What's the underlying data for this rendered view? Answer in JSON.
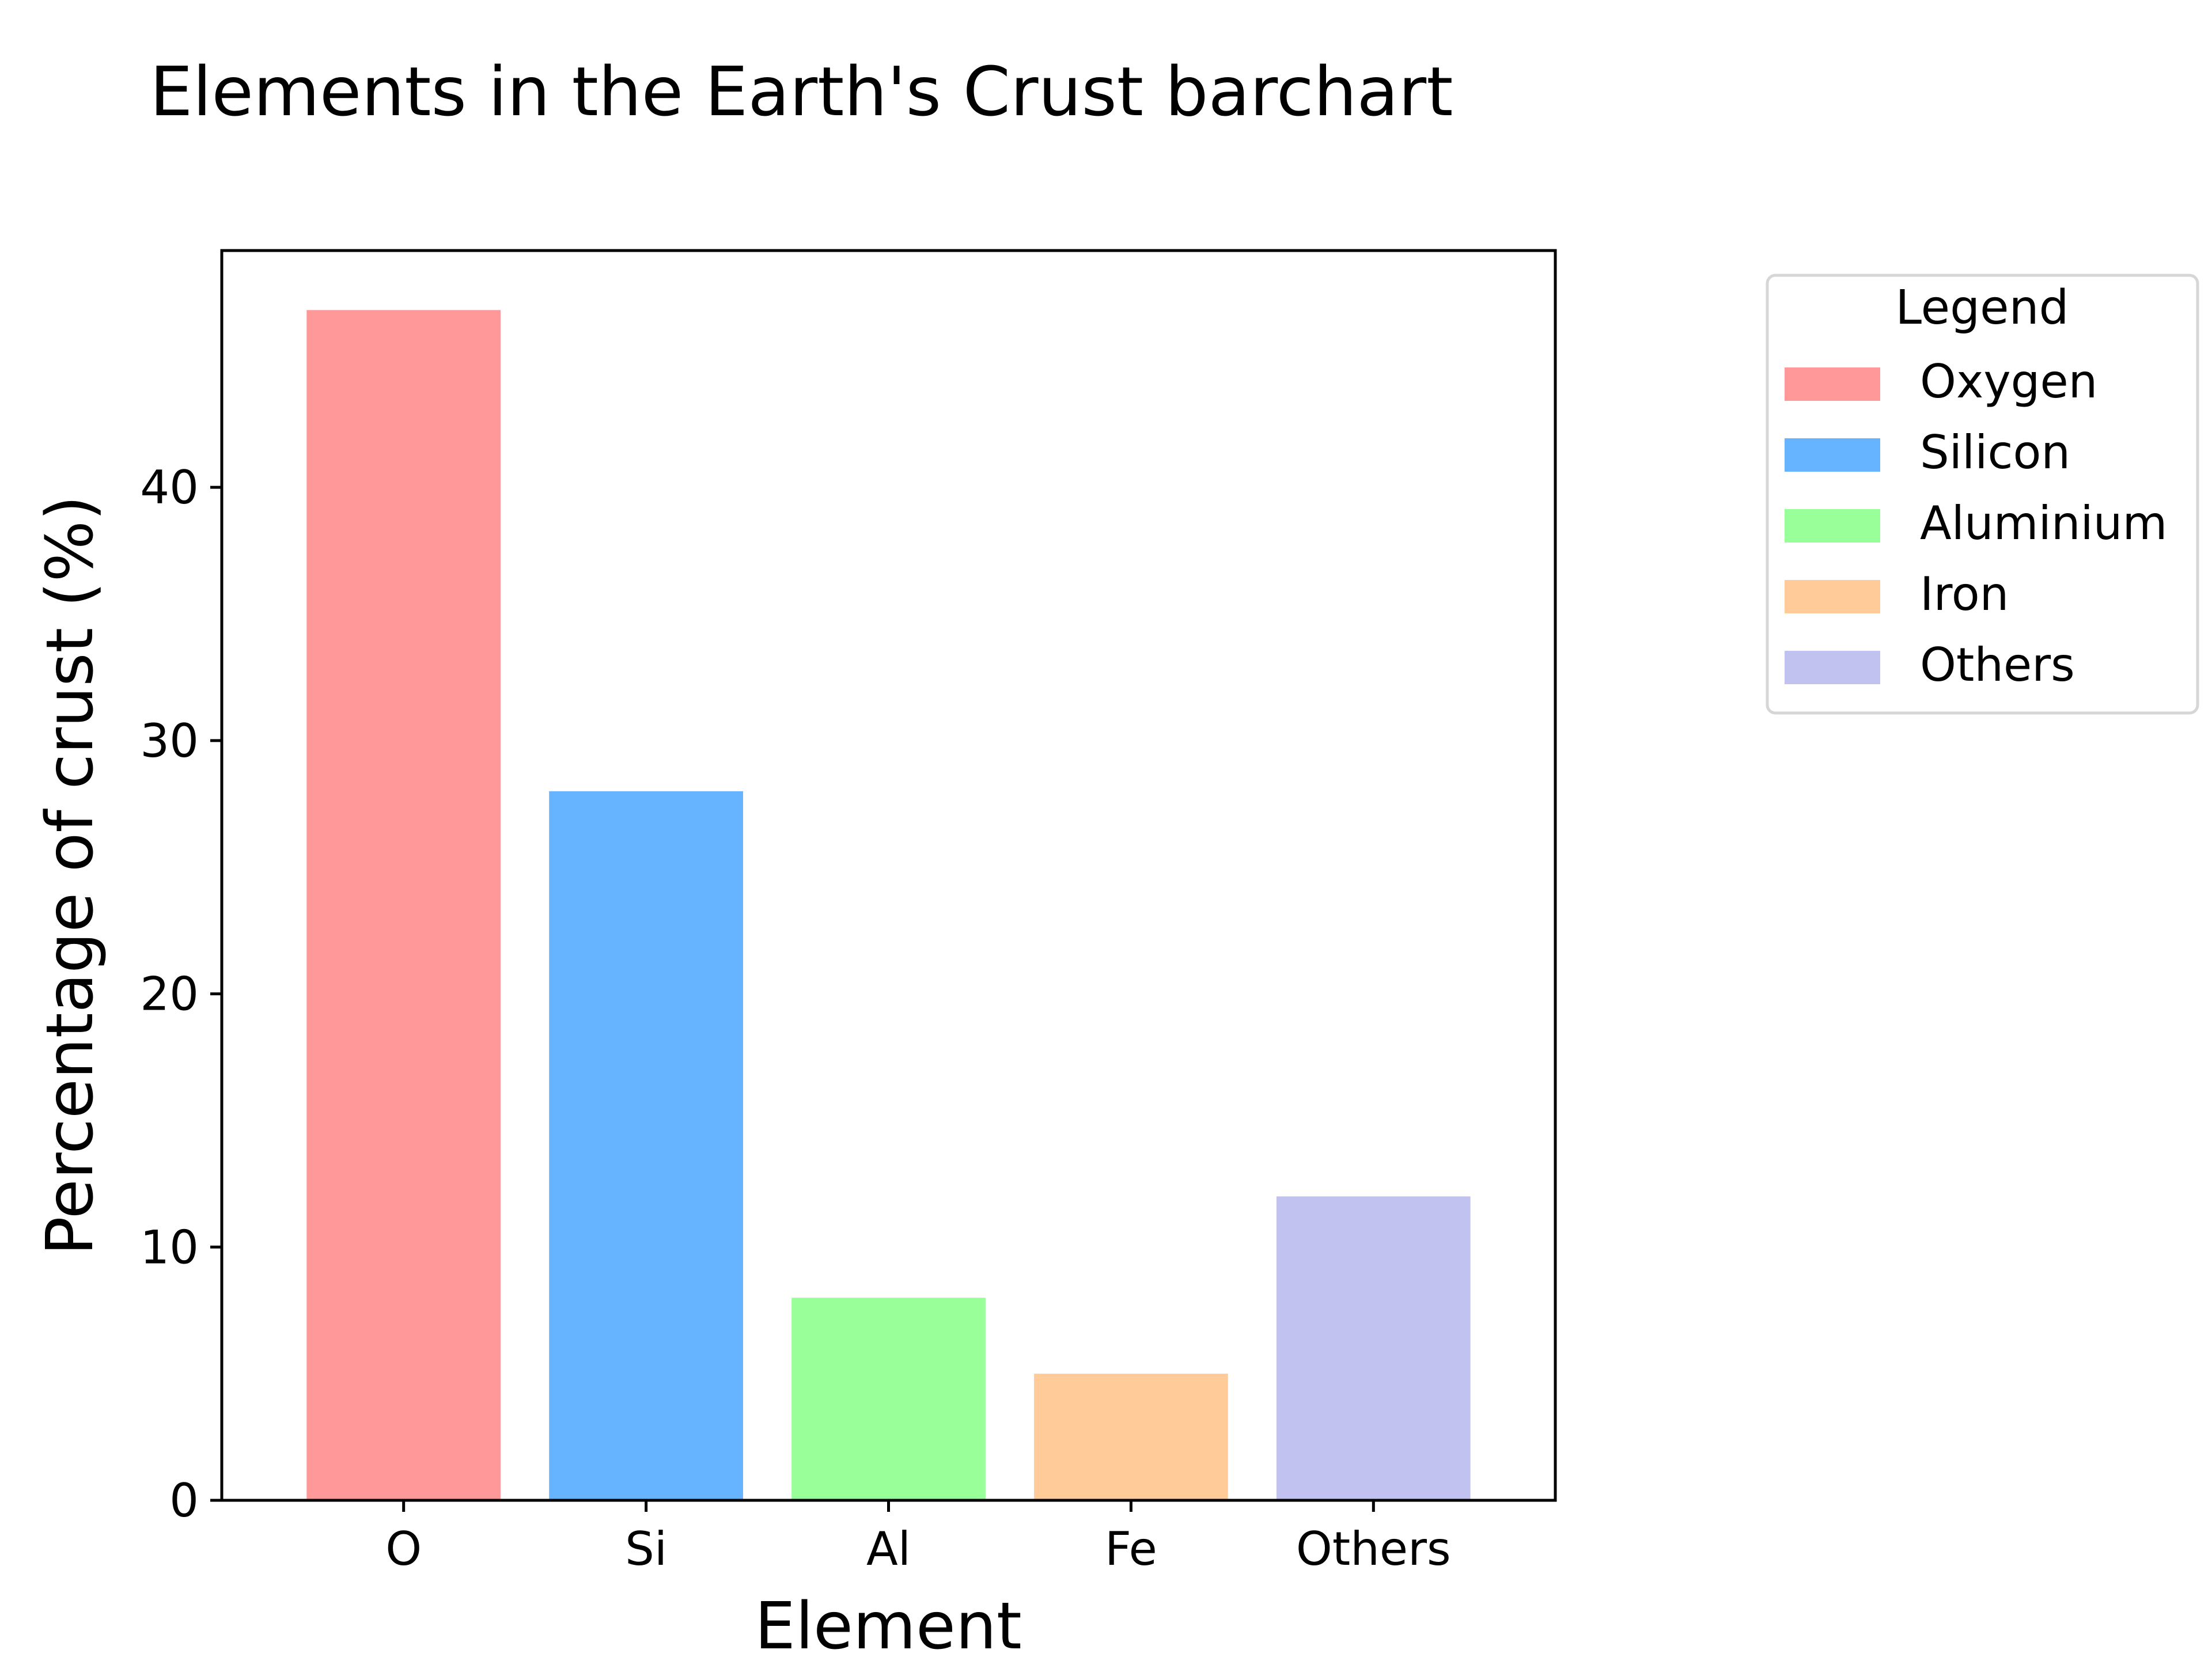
{
  "chart_data": {
    "type": "bar",
    "title": "Elements in the Earth's Crust barchart",
    "xlabel": "Element",
    "ylabel": "Percentage of crust (%)",
    "categories": [
      "O",
      "Si",
      "Al",
      "Fe",
      "Others"
    ],
    "values": [
      47,
      28,
      8,
      5,
      12
    ],
    "colors": [
      "#ff9999",
      "#66b3ff",
      "#99ff99",
      "#ffcc99",
      "#c2c2f0"
    ],
    "ylim": [
      0,
      49.35
    ],
    "yticks": [
      0,
      10,
      20,
      30,
      40
    ],
    "grid": false,
    "legend": {
      "title": "Legend",
      "placement": "outside-right-top",
      "entries": [
        "Oxygen",
        "Silicon",
        "Aluminium",
        "Iron",
        "Others"
      ]
    }
  }
}
